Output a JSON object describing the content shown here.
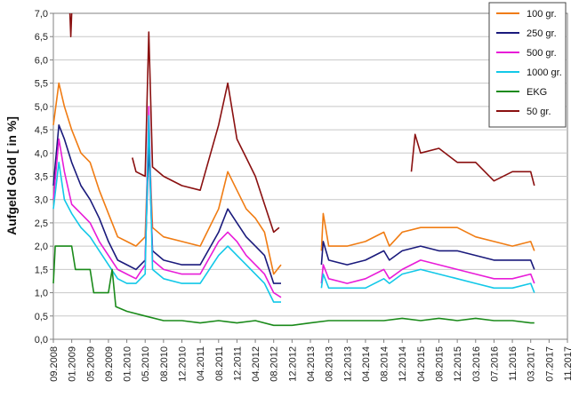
{
  "chart_data": {
    "type": "line",
    "title": "",
    "xlabel": "",
    "ylabel": "Aufgeld Gold [ in %]",
    "ylim": [
      0,
      7
    ],
    "y_ticks": [
      "0,0",
      "0,5",
      "1,0",
      "1,5",
      "2,0",
      "2,5",
      "3,0",
      "3,5",
      "4,0",
      "4,5",
      "5,0",
      "5,5",
      "6,0",
      "6,5",
      "7,0"
    ],
    "x_ticks": [
      "09.2008",
      "01.2009",
      "05.2009",
      "09.2009",
      "01.2010",
      "05.2010",
      "08.2010",
      "12.2010",
      "04.2011",
      "08.2011",
      "12.2011",
      "04.2012",
      "08.2012",
      "12.2012",
      "04.2013",
      "08.2013",
      "12.2013",
      "04.2014",
      "08.2014",
      "12.2014",
      "04.2015",
      "08.2015",
      "12.2015",
      "03.2016",
      "07.2016",
      "11.2016",
      "03.2017",
      "07.2017",
      "11.2017"
    ],
    "grid": "horizontal",
    "legend_position": "top-right",
    "series": [
      {
        "name": "100 gr.",
        "color": "#f07c13",
        "points": [
          [
            0,
            4.6
          ],
          [
            0.3,
            5.5
          ],
          [
            0.6,
            5.0
          ],
          [
            1,
            4.5
          ],
          [
            1.5,
            4.0
          ],
          [
            2,
            3.8
          ],
          [
            2.5,
            3.2
          ],
          [
            3,
            2.7
          ],
          [
            3.5,
            2.2
          ],
          [
            4,
            2.1
          ],
          [
            4.5,
            2.0
          ],
          [
            5,
            2.2
          ],
          [
            5.2,
            4.5
          ],
          [
            5.4,
            2.4
          ],
          [
            6,
            2.2
          ],
          [
            7,
            2.1
          ],
          [
            8,
            2.0
          ],
          [
            9,
            2.8
          ],
          [
            9.5,
            3.6
          ],
          [
            10,
            3.2
          ],
          [
            10.5,
            2.8
          ],
          [
            11,
            2.6
          ],
          [
            11.5,
            2.3
          ],
          [
            12,
            1.4
          ],
          [
            12.4,
            1.6
          ],
          [
            14.6,
            1.9
          ],
          [
            14.7,
            2.7
          ],
          [
            15,
            2.0
          ],
          [
            16,
            2.0
          ],
          [
            17,
            2.1
          ],
          [
            18,
            2.3
          ],
          [
            18.3,
            2.0
          ],
          [
            19,
            2.3
          ],
          [
            20,
            2.4
          ],
          [
            21,
            2.4
          ],
          [
            22,
            2.4
          ],
          [
            23,
            2.2
          ],
          [
            24,
            2.1
          ],
          [
            25,
            2.0
          ],
          [
            26,
            2.1
          ],
          [
            26.2,
            1.9
          ]
        ]
      },
      {
        "name": "250 gr.",
        "color": "#1a1a7c",
        "points": [
          [
            0,
            3.3
          ],
          [
            0.3,
            4.6
          ],
          [
            0.6,
            4.3
          ],
          [
            1,
            3.8
          ],
          [
            1.5,
            3.3
          ],
          [
            2,
            3.0
          ],
          [
            2.5,
            2.6
          ],
          [
            3,
            2.1
          ],
          [
            3.5,
            1.7
          ],
          [
            4,
            1.6
          ],
          [
            4.5,
            1.5
          ],
          [
            5,
            1.7
          ],
          [
            5.2,
            4.2
          ],
          [
            5.4,
            1.9
          ],
          [
            6,
            1.7
          ],
          [
            7,
            1.6
          ],
          [
            8,
            1.6
          ],
          [
            9,
            2.3
          ],
          [
            9.5,
            2.8
          ],
          [
            10,
            2.5
          ],
          [
            10.5,
            2.2
          ],
          [
            11,
            2.0
          ],
          [
            11.5,
            1.8
          ],
          [
            12,
            1.2
          ],
          [
            12.4,
            1.2
          ],
          [
            14.6,
            1.6
          ],
          [
            14.7,
            2.1
          ],
          [
            15,
            1.7
          ],
          [
            16,
            1.6
          ],
          [
            17,
            1.7
          ],
          [
            18,
            1.9
          ],
          [
            18.3,
            1.7
          ],
          [
            19,
            1.9
          ],
          [
            20,
            2.0
          ],
          [
            21,
            1.9
          ],
          [
            22,
            1.9
          ],
          [
            23,
            1.8
          ],
          [
            24,
            1.7
          ],
          [
            25,
            1.7
          ],
          [
            26,
            1.7
          ],
          [
            26.2,
            1.5
          ]
        ]
      },
      {
        "name": "500 gr.",
        "color": "#e81cd8",
        "points": [
          [
            0,
            3.0
          ],
          [
            0.3,
            4.3
          ],
          [
            0.6,
            3.6
          ],
          [
            1,
            2.9
          ],
          [
            1.5,
            2.7
          ],
          [
            2,
            2.5
          ],
          [
            2.5,
            2.1
          ],
          [
            3,
            1.8
          ],
          [
            3.5,
            1.5
          ],
          [
            4,
            1.4
          ],
          [
            4.5,
            1.3
          ],
          [
            5,
            1.6
          ],
          [
            5.2,
            5.0
          ],
          [
            5.4,
            1.7
          ],
          [
            6,
            1.5
          ],
          [
            7,
            1.4
          ],
          [
            8,
            1.4
          ],
          [
            9,
            2.1
          ],
          [
            9.5,
            2.3
          ],
          [
            10,
            2.1
          ],
          [
            10.5,
            1.8
          ],
          [
            11,
            1.6
          ],
          [
            11.5,
            1.4
          ],
          [
            12,
            1.0
          ],
          [
            12.4,
            0.9
          ],
          [
            14.6,
            1.2
          ],
          [
            14.7,
            1.6
          ],
          [
            15,
            1.3
          ],
          [
            16,
            1.2
          ],
          [
            17,
            1.3
          ],
          [
            18,
            1.5
          ],
          [
            18.3,
            1.3
          ],
          [
            19,
            1.5
          ],
          [
            20,
            1.7
          ],
          [
            21,
            1.6
          ],
          [
            22,
            1.5
          ],
          [
            23,
            1.4
          ],
          [
            24,
            1.3
          ],
          [
            25,
            1.3
          ],
          [
            26,
            1.4
          ],
          [
            26.2,
            1.2
          ]
        ]
      },
      {
        "name": "1000 gr.",
        "color": "#12c8e8",
        "points": [
          [
            0,
            2.8
          ],
          [
            0.3,
            3.8
          ],
          [
            0.6,
            3.0
          ],
          [
            1,
            2.7
          ],
          [
            1.5,
            2.4
          ],
          [
            2,
            2.2
          ],
          [
            2.5,
            1.9
          ],
          [
            3,
            1.6
          ],
          [
            3.5,
            1.3
          ],
          [
            4,
            1.2
          ],
          [
            4.5,
            1.2
          ],
          [
            5,
            1.4
          ],
          [
            5.2,
            4.8
          ],
          [
            5.4,
            1.5
          ],
          [
            6,
            1.3
          ],
          [
            7,
            1.2
          ],
          [
            8,
            1.2
          ],
          [
            9,
            1.8
          ],
          [
            9.5,
            2.0
          ],
          [
            10,
            1.8
          ],
          [
            10.5,
            1.6
          ],
          [
            11,
            1.4
          ],
          [
            11.5,
            1.2
          ],
          [
            12,
            0.8
          ],
          [
            12.4,
            0.8
          ],
          [
            14.6,
            1.1
          ],
          [
            14.7,
            1.4
          ],
          [
            15,
            1.1
          ],
          [
            16,
            1.1
          ],
          [
            17,
            1.1
          ],
          [
            18,
            1.3
          ],
          [
            18.3,
            1.2
          ],
          [
            19,
            1.4
          ],
          [
            20,
            1.5
          ],
          [
            21,
            1.4
          ],
          [
            22,
            1.3
          ],
          [
            23,
            1.2
          ],
          [
            24,
            1.1
          ],
          [
            25,
            1.1
          ],
          [
            26,
            1.2
          ],
          [
            26.2,
            1.0
          ]
        ]
      },
      {
        "name": "EKG",
        "color": "#1a8a1a",
        "points": [
          [
            0,
            1.2
          ],
          [
            0.1,
            2.0
          ],
          [
            1,
            2.0
          ],
          [
            1.2,
            1.5
          ],
          [
            2,
            1.5
          ],
          [
            2.2,
            1.0
          ],
          [
            3,
            1.0
          ],
          [
            3.2,
            1.5
          ],
          [
            3.4,
            0.7
          ],
          [
            4,
            0.6
          ],
          [
            5,
            0.5
          ],
          [
            6,
            0.4
          ],
          [
            7,
            0.4
          ],
          [
            8,
            0.35
          ],
          [
            9,
            0.4
          ],
          [
            10,
            0.35
          ],
          [
            11,
            0.4
          ],
          [
            12,
            0.3
          ],
          [
            13,
            0.3
          ],
          [
            14,
            0.35
          ],
          [
            15,
            0.4
          ],
          [
            16,
            0.4
          ],
          [
            17,
            0.4
          ],
          [
            18,
            0.4
          ],
          [
            19,
            0.45
          ],
          [
            20,
            0.4
          ],
          [
            21,
            0.45
          ],
          [
            22,
            0.4
          ],
          [
            23,
            0.45
          ],
          [
            24,
            0.4
          ],
          [
            25,
            0.4
          ],
          [
            26,
            0.35
          ],
          [
            26.2,
            0.35
          ]
        ]
      },
      {
        "name": "50 gr.",
        "color": "#8a1010",
        "points": [
          [
            0.9,
            7.0
          ],
          [
            0.95,
            6.5
          ],
          [
            1.0,
            7.0
          ],
          [
            4.3,
            3.9
          ],
          [
            4.5,
            3.6
          ],
          [
            5,
            3.5
          ],
          [
            5.2,
            6.6
          ],
          [
            5.4,
            3.7
          ],
          [
            6,
            3.5
          ],
          [
            7,
            3.3
          ],
          [
            8,
            3.2
          ],
          [
            9,
            4.6
          ],
          [
            9.5,
            5.5
          ],
          [
            10,
            4.3
          ],
          [
            10.5,
            3.9
          ],
          [
            11,
            3.5
          ],
          [
            11.5,
            2.9
          ],
          [
            12,
            2.3
          ],
          [
            12.3,
            2.4
          ],
          [
            19.5,
            3.6
          ],
          [
            19.7,
            4.4
          ],
          [
            20,
            4.0
          ],
          [
            21,
            4.1
          ],
          [
            22,
            3.8
          ],
          [
            23,
            3.8
          ],
          [
            24,
            3.4
          ],
          [
            25,
            3.6
          ],
          [
            26,
            3.6
          ],
          [
            26.2,
            3.3
          ]
        ]
      }
    ]
  }
}
